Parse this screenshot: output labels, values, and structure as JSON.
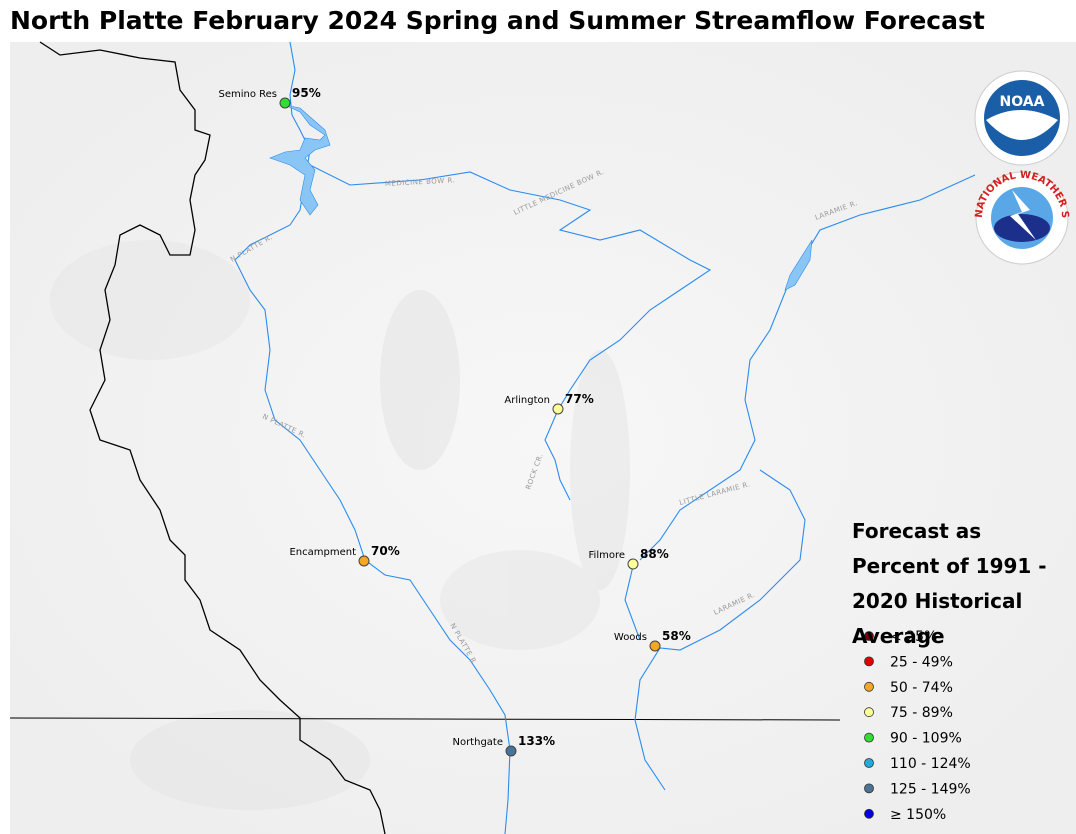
{
  "title": "North Platte February 2024 Spring and Summer Streamflow Forecast",
  "stations": [
    {
      "name": "Semino Res",
      "forecast": "95%",
      "color": "#33dd33"
    },
    {
      "name": "Arlington",
      "forecast": "77%",
      "color": "#ffff99"
    },
    {
      "name": "Encampment",
      "forecast": "70%",
      "color": "#f5a623"
    },
    {
      "name": "Filmore",
      "forecast": "88%",
      "color": "#ffff99"
    },
    {
      "name": "Woods",
      "forecast": "58%",
      "color": "#f5a623"
    },
    {
      "name": "Northgate",
      "forecast": "133%",
      "color": "#4a7396"
    }
  ],
  "rivers": [
    "MEDICINE BOW R.",
    "LITTLE MEDICINE BOW R.",
    "N PLATTE R.",
    "N PLATTE R.",
    "N PLATTE R.",
    "ROCK CR.",
    "LITTLE LARAMIE R.",
    "LARAMIE R.",
    "LARAMIE R."
  ],
  "legend": {
    "title": "Forecast as Percent of 1991 - 2020 Historical Average",
    "items": [
      {
        "label": "< 25%",
        "color": "#7a0000"
      },
      {
        "label": "25 - 49%",
        "color": "#e00000"
      },
      {
        "label": "50 - 74%",
        "color": "#f5a623"
      },
      {
        "label": "75 - 89%",
        "color": "#ffff99"
      },
      {
        "label": "90 - 109%",
        "color": "#33dd33"
      },
      {
        "label": "110 - 124%",
        "color": "#22aadd"
      },
      {
        "label": "125 - 149%",
        "color": "#4a7396"
      },
      {
        "label": "≥ 150%",
        "color": "#0000dd"
      }
    ]
  },
  "logos": {
    "noaa": "NOAA",
    "nws": "NATIONAL WEATHER SERVICE"
  }
}
